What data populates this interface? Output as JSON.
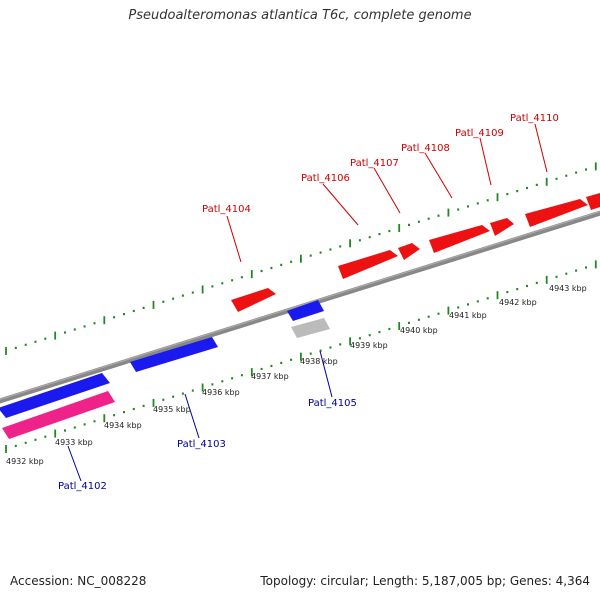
{
  "title": "Pseudoalteromonas atlantica T6c, complete genome",
  "footer": {
    "accession": "Accession: NC_008228",
    "info": "Topology: circular; Length: 5,187,005 bp; Genes: 4,364"
  },
  "colors": {
    "forward_gene": "#ee1111",
    "reverse_gene": "#1a1aee",
    "rna_gene": "#ee2288",
    "pseudo_gene": "#bbbbbb",
    "backbone": "#888888",
    "ticks": "#228822",
    "forward_label": "#cc0000",
    "reverse_label": "#000099"
  },
  "kbp_labels": [
    "4932 kbp",
    "4933 kbp",
    "4934 kbp",
    "4935 kbp",
    "4936 kbp",
    "4937 kbp",
    "4938 kbp",
    "4939 kbp",
    "4940 kbp",
    "4941 kbp",
    "4942 kbp",
    "4943 kbp"
  ],
  "forward_gene_labels": [
    "Patl_4104",
    "Patl_4106",
    "Patl_4107",
    "Patl_4108",
    "Patl_4109",
    "Patl_4110"
  ],
  "reverse_gene_labels": [
    "Patl_4102",
    "Patl_4103",
    "Patl_4105"
  ]
}
